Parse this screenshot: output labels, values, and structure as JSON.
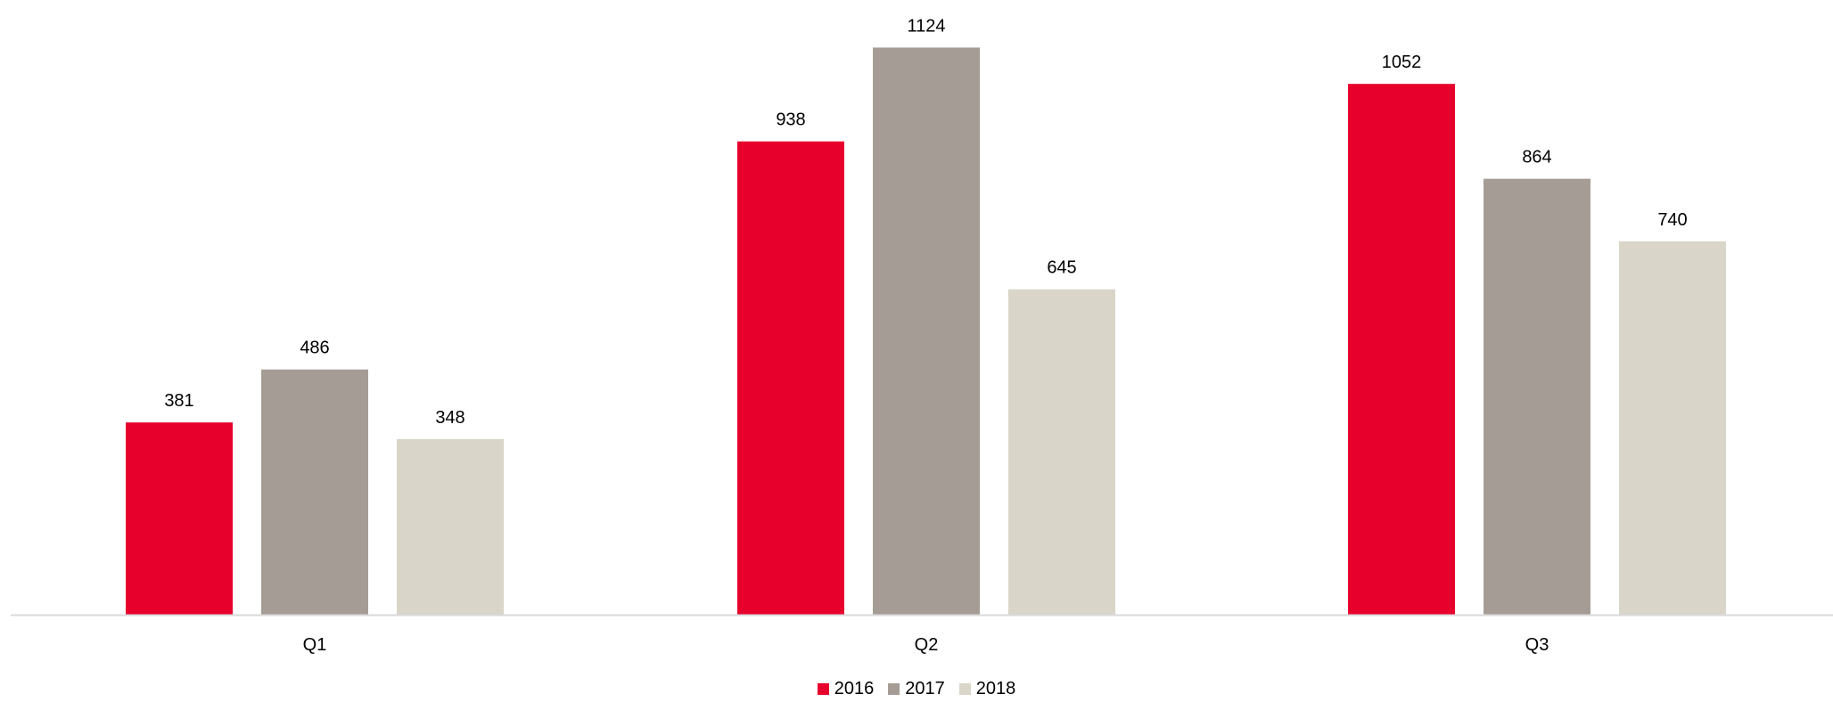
{
  "chart_data": {
    "type": "bar",
    "categories": [
      "Q1",
      "Q2",
      "Q3"
    ],
    "series": [
      {
        "name": "2016",
        "values": [
          381,
          938,
          1052
        ],
        "color": "#E8002D"
      },
      {
        "name": "2017",
        "values": [
          486,
          1124,
          864
        ],
        "color": "#A59D95"
      },
      {
        "name": "2018",
        "values": [
          348,
          645,
          740
        ],
        "color": "#D9D5C9"
      }
    ],
    "ylim": [
      0,
      1160
    ],
    "grid": false,
    "legend_position": "bottom",
    "data_labels": true
  }
}
